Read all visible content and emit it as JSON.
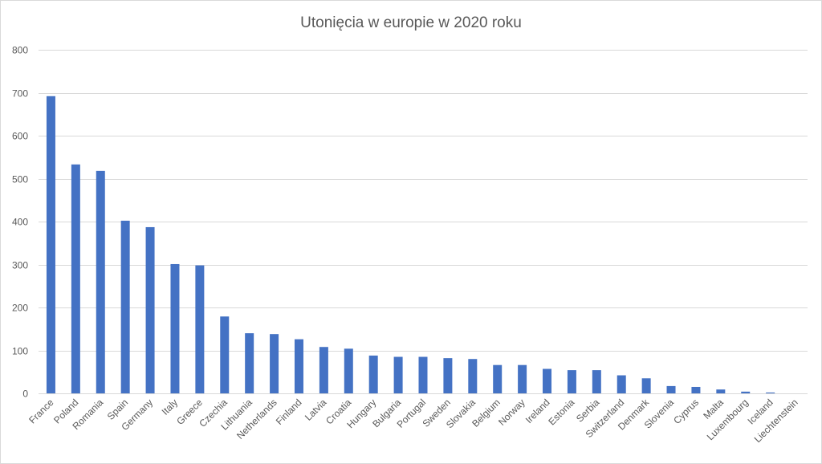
{
  "chart_data": {
    "type": "bar",
    "title": "Utonięcia w europie w 2020 roku",
    "xlabel": "",
    "ylabel": "",
    "ylim": [
      0,
      800
    ],
    "yticks": [
      0,
      100,
      200,
      300,
      400,
      500,
      600,
      700,
      800
    ],
    "grid": true,
    "legend": "none",
    "bar_color": "#4472c4",
    "categories": [
      "France",
      "Poland",
      "Romania",
      "Spain",
      "Germany",
      "Italy",
      "Greece",
      "Czechia",
      "Lithuania",
      "Netherlands",
      "Finland",
      "Latvia",
      "Croatia",
      "Hungary",
      "Bulgaria",
      "Portugal",
      "Sweden",
      "Slovakia",
      "Belgium",
      "Norway",
      "Ireland",
      "Estonia",
      "Serbia",
      "Switzerland",
      "Denmark",
      "Slovenia",
      "Cyprus",
      "Malta",
      "Luxembourg",
      "Iceland",
      "Liechtenstein"
    ],
    "values": [
      692,
      533,
      518,
      402,
      387,
      301,
      298,
      179,
      140,
      138,
      126,
      108,
      104,
      88,
      85,
      85,
      82,
      80,
      66,
      66,
      57,
      54,
      54,
      42,
      35,
      17,
      15,
      9,
      4,
      2,
      0
    ]
  }
}
